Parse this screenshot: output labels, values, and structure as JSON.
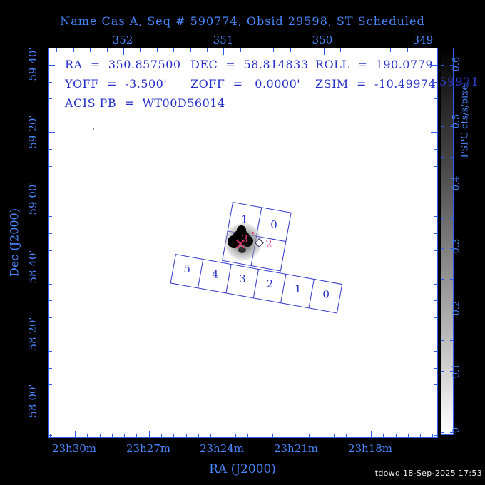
{
  "title": "Name Cas A, Seq # 590774, Obsid 29598, ST Scheduled",
  "status": {
    "ra": "RA  =  350.857500",
    "dec": "DEC  =  58.814833",
    "roll": "ROLL  =  190.0779",
    "yoff": "YOFF  =  -3.500'",
    "zoff": "ZOFF  =   0.0000'",
    "zsim": "ZSIM  =  -10.49974",
    "acis_pb": "ACIS PB  =  WT00D56014"
  },
  "axes": {
    "top": {
      "tick_labels": [
        "352",
        "351",
        "350",
        "349"
      ]
    },
    "bottom": {
      "title": "RA (J2000)",
      "tick_labels": [
        "23h30m",
        "23h27m",
        "23h24m",
        "23h21m",
        "23h18m"
      ]
    },
    "left": {
      "title": "Dec (J2000)",
      "tick_labels": [
        "59 40'",
        "59 20'",
        "59 00'",
        "58 40'",
        "58 20'",
        "58 00'"
      ]
    }
  },
  "wedge": {
    "title": "PSPC cts/s/pixel",
    "tick_labels": [
      "0.6",
      "0.5",
      "0.4",
      "0.3",
      "0.2",
      "0.1",
      "0"
    ]
  },
  "overlay": {
    "obsid_label": "59931"
  },
  "detectors": {
    "acis_i": {
      "chip_labels": [
        "1",
        "0",
        "3",
        "2"
      ],
      "label_colors": [
        "navy",
        "navy",
        "pink",
        "pink"
      ]
    },
    "acis_s": {
      "chip_labels": [
        "5",
        "4",
        "3",
        "2",
        "1",
        "0"
      ]
    }
  },
  "credit": "tdowd 18-Sep-2025 17:53",
  "colors": {
    "background": "#000000",
    "axis_text_blue": "#4887ff",
    "frame_blue": "#2b5bf0",
    "data_navy": "#2430c8",
    "chip_line_navy": "#2d35c8",
    "highlight_pink": "#e0356e",
    "credit_white": "#efefef"
  },
  "chart_data": {
    "type": "heatmap",
    "title": "Name Cas A, Seq # 590774, Obsid 29598, ST Scheduled",
    "xlabel": "RA (J2000)",
    "ylabel": "Dec (J2000)",
    "x_tick_labels_bottom": [
      "23h30m",
      "23h27m",
      "23h24m",
      "23h21m",
      "23h18m"
    ],
    "x_tick_labels_top_degrees": [
      352,
      351,
      350,
      349
    ],
    "y_tick_labels": [
      "59 40'",
      "59 20'",
      "59 00'",
      "58 40'",
      "58 20'",
      "58 00'"
    ],
    "colorbar": {
      "label": "PSPC cts/s/pixel",
      "tick_values": [
        0.6,
        0.5,
        0.4,
        0.3,
        0.2,
        0.1,
        0
      ],
      "gradient": "black-top to white-bottom"
    },
    "pointing": {
      "ra_deg": 350.8575,
      "dec_deg": 58.814833,
      "roll_deg": 190.0779,
      "yoff_arcmin": -3.5,
      "zoff_arcmin": 0.0,
      "zsim": -10.49974,
      "acis_pb": "WT00D56014"
    },
    "overlays": {
      "acis_i_chips": [
        "1",
        "0",
        "3",
        "2"
      ],
      "acis_s_chips": [
        "5",
        "4",
        "3",
        "2",
        "1",
        "0"
      ],
      "active_chip_labels_pink": [
        "3",
        "2"
      ],
      "source_image": "Cas A dark blob on chip I3 with pink X target marker and white aimpoint diamond",
      "second_obsid_label": "59931"
    }
  }
}
